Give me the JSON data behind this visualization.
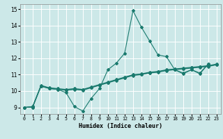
{
  "xlabel": "Humidex (Indice chaleur)",
  "x": [
    0,
    1,
    2,
    3,
    4,
    5,
    6,
    7,
    8,
    9,
    10,
    11,
    12,
    13,
    14,
    15,
    16,
    17,
    18,
    19,
    20,
    21,
    22,
    23
  ],
  "line_main": [
    9.0,
    9.0,
    10.3,
    10.15,
    10.1,
    9.9,
    9.05,
    8.78,
    9.55,
    10.15,
    11.3,
    11.7,
    12.3,
    14.9,
    13.9,
    13.05,
    12.2,
    12.1,
    11.3,
    11.1,
    11.3,
    11.1,
    11.65,
    null
  ],
  "line_straight1": [
    9.0,
    9.05,
    10.35,
    10.2,
    10.15,
    10.1,
    10.15,
    10.1,
    10.25,
    10.4,
    10.55,
    10.7,
    10.85,
    11.0,
    11.05,
    11.15,
    11.2,
    11.3,
    11.35,
    11.4,
    11.45,
    11.5,
    11.55,
    11.65
  ],
  "line_straight2": [
    9.0,
    9.05,
    10.3,
    10.18,
    10.12,
    10.07,
    10.12,
    10.07,
    10.22,
    10.37,
    10.52,
    10.67,
    10.82,
    10.97,
    11.02,
    11.12,
    11.17,
    11.27,
    11.32,
    11.37,
    11.42,
    11.47,
    11.52,
    11.62
  ],
  "line_straight3": [
    9.0,
    9.03,
    10.3,
    10.16,
    10.1,
    10.05,
    10.1,
    10.05,
    10.2,
    10.35,
    10.5,
    10.65,
    10.8,
    10.95,
    11.0,
    11.1,
    11.15,
    11.25,
    11.3,
    11.35,
    11.4,
    11.45,
    11.5,
    11.6
  ],
  "line_end": [
    null,
    null,
    null,
    null,
    null,
    null,
    null,
    null,
    null,
    null,
    null,
    null,
    null,
    null,
    null,
    null,
    null,
    null,
    11.3,
    11.05,
    11.3,
    11.05,
    11.65,
    null
  ],
  "bg_color": "#cce8e8",
  "line_color": "#1a7a6e",
  "grid_color": "#ffffff",
  "ylim": [
    8.6,
    15.3
  ],
  "xlim": [
    -0.5,
    23.5
  ],
  "yticks": [
    9,
    10,
    11,
    12,
    13,
    14,
    15
  ],
  "xticks": [
    0,
    1,
    2,
    3,
    4,
    5,
    6,
    7,
    8,
    9,
    10,
    11,
    12,
    13,
    14,
    15,
    16,
    17,
    18,
    19,
    20,
    21,
    22,
    23
  ]
}
